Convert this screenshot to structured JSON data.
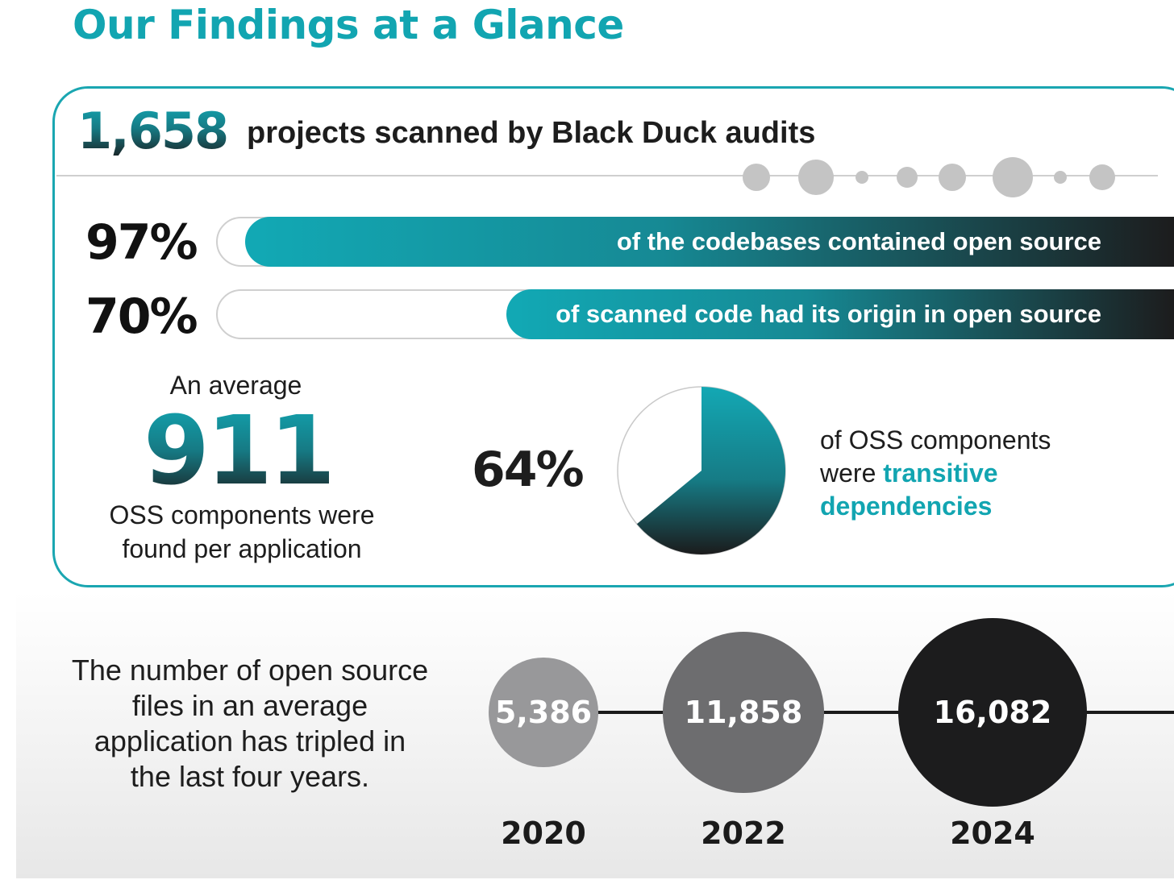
{
  "title": "Our Findings at a Glance",
  "projects": {
    "count": "1,658",
    "label": "projects scanned by Black Duck audits"
  },
  "bars": [
    {
      "pct_label": "97%",
      "value": 97,
      "text": "of the codebases contained open source"
    },
    {
      "pct_label": "70%",
      "value": 70,
      "text": "of scanned code had its origin in open source"
    }
  ],
  "average": {
    "top": "An average",
    "number": "911",
    "bottom_line1": "OSS components were",
    "bottom_line2": "found per application"
  },
  "pie": {
    "pct_label": "64%",
    "value": 64,
    "desc_line1": "of OSS components",
    "desc_line2_plain": "were ",
    "desc_line2_accent": "transitive",
    "desc_line3_accent": "dependencies"
  },
  "growth": {
    "line1": "The number of open source",
    "line2": "files in an average",
    "line3": "application has tripled in",
    "line4": "the last four years."
  },
  "chart_data": {
    "type": "scatter",
    "title": "",
    "categories": [
      "2020",
      "2022",
      "2024"
    ],
    "values": [
      5386,
      11858,
      16082
    ],
    "value_labels": [
      "5,386",
      "11,858",
      "16,082"
    ],
    "colors": [
      "#98989a",
      "#6d6d6f",
      "#1c1c1d"
    ]
  }
}
